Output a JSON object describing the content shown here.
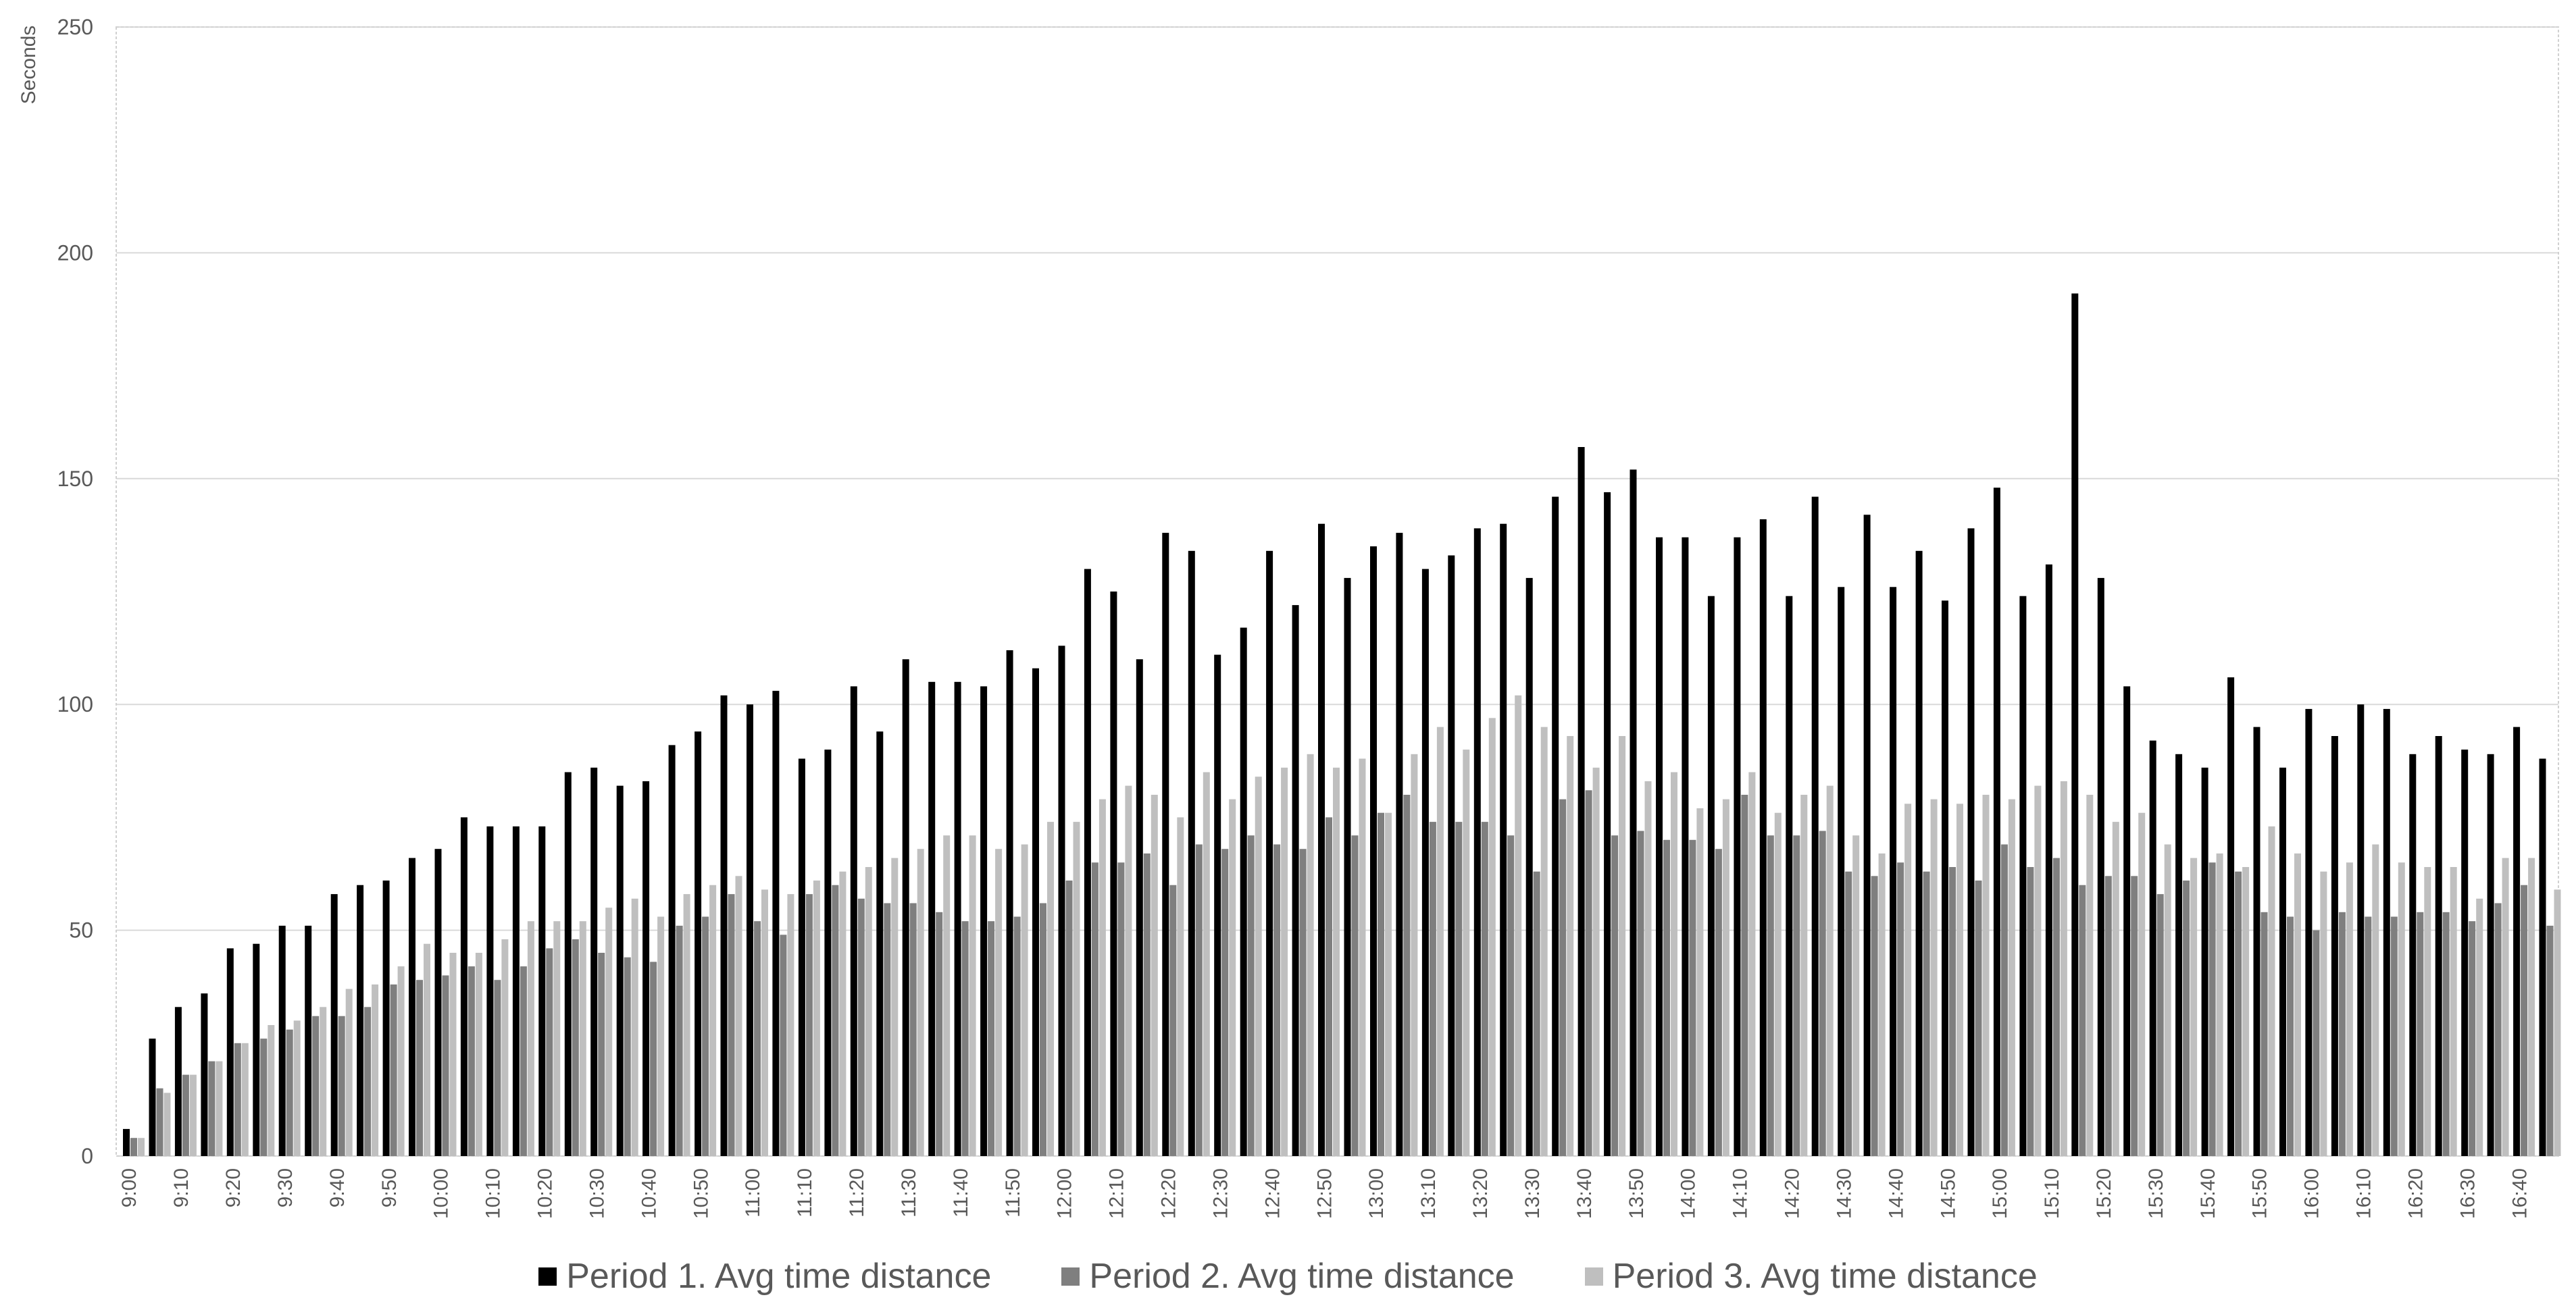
{
  "chart_data": {
    "type": "bar",
    "title": "",
    "xlabel": "",
    "ylabel": "Seconds",
    "ylim": [
      0,
      250
    ],
    "yticks": [
      "0",
      "50",
      "100",
      "150",
      "200",
      "250"
    ],
    "grid": true,
    "legend_position": "bottom",
    "categories": [
      "9:00",
      "9:05",
      "9:10",
      "9:15",
      "9:20",
      "9:25",
      "9:30",
      "9:35",
      "9:40",
      "9:45",
      "9:50",
      "9:55",
      "10:00",
      "10:05",
      "10:10",
      "10:15",
      "10:20",
      "10:25",
      "10:30",
      "10:35",
      "10:40",
      "10:45",
      "10:50",
      "10:55",
      "11:00",
      "11:05",
      "11:10",
      "11:15",
      "11:20",
      "11:25",
      "11:30",
      "11:35",
      "11:40",
      "11:45",
      "11:50",
      "11:55",
      "12:00",
      "12:05",
      "12:10",
      "12:15",
      "12:20",
      "12:25",
      "12:30",
      "12:35",
      "12:40",
      "12:45",
      "12:50",
      "12:55",
      "13:00",
      "13:05",
      "13:10",
      "13:15",
      "13:20",
      "13:25",
      "13:30",
      "13:35",
      "13:40",
      "13:45",
      "13:50",
      "13:55",
      "14:00",
      "14:05",
      "14:10",
      "14:15",
      "14:20",
      "14:25",
      "14:30",
      "14:35",
      "14:40",
      "14:45",
      "14:50",
      "14:55",
      "15:00",
      "15:05",
      "15:10",
      "15:15",
      "15:20",
      "15:25",
      "15:30",
      "15:35",
      "15:40",
      "15:45",
      "15:50",
      "15:55",
      "16:00",
      "16:05",
      "16:10",
      "16:15",
      "16:20",
      "16:25",
      "16:30",
      "16:35",
      "16:40",
      "16:45"
    ],
    "labeled_every": 2,
    "series": [
      {
        "name": "Period 1. Avg time distance",
        "color": "#000000",
        "values": [
          6,
          26,
          33,
          36,
          46,
          47,
          51,
          51,
          58,
          60,
          61,
          66,
          68,
          75,
          73,
          73,
          73,
          85,
          86,
          82,
          83,
          91,
          94,
          102,
          100,
          103,
          88,
          90,
          104,
          94,
          110,
          105,
          105,
          104,
          112,
          108,
          113,
          130,
          125,
          110,
          138,
          134,
          111,
          117,
          134,
          122,
          140,
          128,
          135,
          138,
          130,
          133,
          139,
          140,
          128,
          146,
          157,
          147,
          152,
          137,
          137,
          124,
          137,
          141,
          124,
          146,
          126,
          142,
          126,
          134,
          123,
          139,
          148,
          124,
          131,
          191,
          128,
          104,
          92,
          89,
          86,
          106,
          95,
          86,
          99,
          93,
          100,
          99,
          89,
          93,
          90,
          89,
          95,
          88
        ]
      },
      {
        "name": "Period 2. Avg time distance",
        "color": "#7f7f7f",
        "values": [
          4,
          15,
          18,
          21,
          25,
          26,
          28,
          31,
          31,
          33,
          38,
          39,
          40,
          42,
          39,
          42,
          46,
          48,
          45,
          44,
          43,
          51,
          53,
          58,
          52,
          49,
          58,
          60,
          57,
          56,
          56,
          54,
          52,
          52,
          53,
          56,
          61,
          65,
          65,
          67,
          60,
          69,
          68,
          71,
          69,
          68,
          75,
          71,
          76,
          80,
          74,
          74,
          74,
          71,
          63,
          79,
          81,
          71,
          72,
          70,
          70,
          68,
          80,
          71,
          71,
          72,
          63,
          62,
          65,
          63,
          64,
          61,
          69,
          64,
          66,
          60,
          62,
          62,
          58,
          61,
          65,
          63,
          54,
          53,
          50,
          54,
          53,
          53,
          54,
          54,
          52,
          56,
          60,
          51
        ]
      },
      {
        "name": "Period 3. Avg time distance",
        "color": "#bfbfbf",
        "values": [
          4,
          14,
          18,
          21,
          25,
          29,
          30,
          33,
          37,
          38,
          42,
          47,
          45,
          45,
          48,
          52,
          52,
          52,
          55,
          57,
          53,
          58,
          60,
          62,
          59,
          58,
          61,
          63,
          64,
          66,
          68,
          71,
          71,
          68,
          69,
          74,
          74,
          79,
          82,
          80,
          75,
          85,
          79,
          84,
          86,
          89,
          86,
          88,
          76,
          89,
          95,
          90,
          97,
          102,
          95,
          93,
          86,
          93,
          83,
          85,
          77,
          79,
          85,
          76,
          80,
          82,
          71,
          67,
          78,
          79,
          78,
          80,
          79,
          82,
          83,
          80,
          74,
          76,
          69,
          66,
          67,
          64,
          73,
          67,
          63,
          65,
          69,
          65,
          64,
          64,
          57,
          66,
          66,
          59
        ]
      }
    ]
  }
}
